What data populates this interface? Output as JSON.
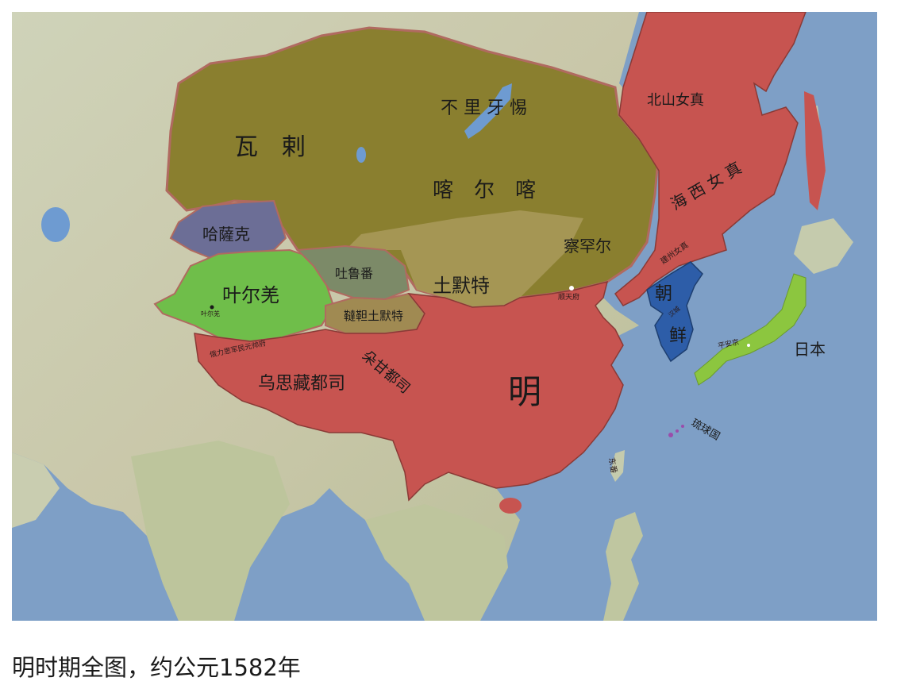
{
  "map": {
    "colors": {
      "ocean": "#7e9fc6",
      "land": "#c7cdb0",
      "oirat": "#8a7f2f",
      "kazakh": "#6c6e96",
      "yarkand": "#6fbe4a",
      "turpan": "#7c8a68",
      "tumed": "#a08a52",
      "ming": "#c75450",
      "joseon": "#2d5da8",
      "japan": "#8cc63f",
      "ryukyu": "#9a4dab",
      "lake": "#6e9bd1"
    },
    "regions": {
      "oirat": "瓦　剌",
      "buliyatu": "不 里 牙 惕",
      "khalkha": "喀　尔　喀",
      "chahar": "察罕尔",
      "kazakh": "哈薩克",
      "turpan": "吐鲁番",
      "tumed": "土默特",
      "yarkand": "叶尔羌",
      "dada_tumed": "韃靼土默特",
      "ming": "明",
      "wusizang": "乌思藏都司",
      "duogan": "朵甘都司",
      "ngari": "俄力思军民元帅府",
      "beishan_nuzhen": "北山女真",
      "haixi_nuzhen": "海 西 女 真",
      "jianzhou_nuzhen": "建州女真",
      "joseon_1": "朝",
      "joseon_2": "鲜",
      "hanyang": "汉城",
      "japan": "日本",
      "heiankyo": "平安京",
      "ryukyu": "琉球国",
      "taiwan": "东番"
    },
    "cities": {
      "shuntian": "顺天府",
      "yarkand_city": "叶尔羌"
    }
  },
  "caption": "明时期全图，约公元1582年"
}
